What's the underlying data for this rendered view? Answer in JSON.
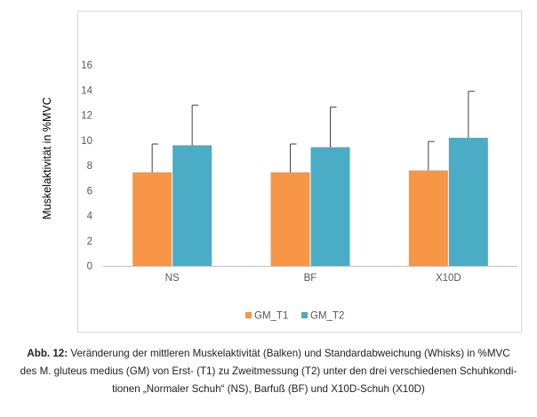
{
  "chart_data": {
    "type": "bar",
    "categories": [
      "NS",
      "BF",
      "X10D"
    ],
    "series": [
      {
        "name": "GM_T1",
        "color": "#F79646",
        "values": [
          7.45,
          7.45,
          7.6
        ],
        "errors": [
          2.25,
          2.25,
          2.3
        ]
      },
      {
        "name": "GM_T2",
        "color": "#4BACC6",
        "values": [
          9.6,
          9.45,
          10.2
        ],
        "errors": [
          3.2,
          3.2,
          3.7
        ]
      }
    ],
    "ylabel": "Muskelaktivität in %MVC",
    "xlabel": "",
    "title": "",
    "ylim": [
      0,
      16
    ],
    "yticks": [
      "0",
      "2",
      "4",
      "6",
      "8",
      "10",
      "12",
      "14",
      "16"
    ],
    "grid": false,
    "legend_position": "bottom"
  },
  "caption": {
    "label": "Abb. 12:",
    "line1": " Veränderung der mittleren Muskelaktivität (Balken) und Standardabweichung (Whisks) in %MVC",
    "line2": "des M. gluteus medius (GM) von Erst- (T1) zu Zweitmessung (T2) unter den drei verschiedenen Schuhkondi-",
    "line3": "tionen „Normaler Schuh“ (NS), Barfuß (BF) und X10D-Schuh (X10D)"
  }
}
